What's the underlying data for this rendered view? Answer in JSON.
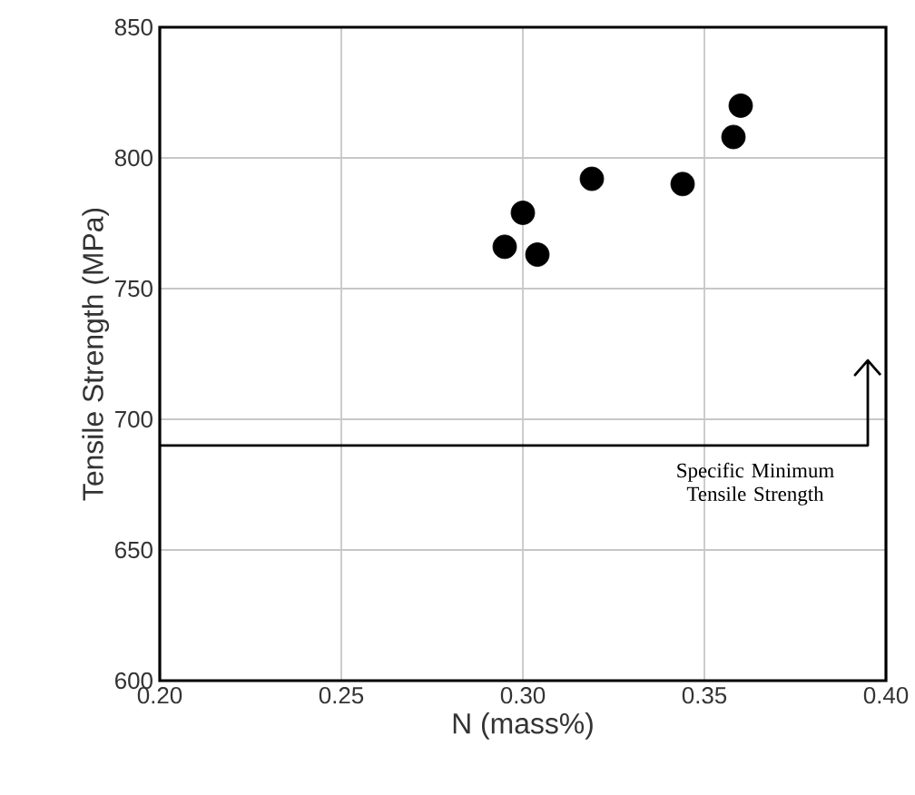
{
  "chart_data": {
    "type": "scatter",
    "xlabel": "N (mass%)",
    "ylabel": "Tensile Strength (MPa)",
    "x": [
      0.295,
      0.3,
      0.304,
      0.319,
      0.344,
      0.358,
      0.36
    ],
    "values": [
      766,
      779,
      763,
      792,
      790,
      808,
      820
    ],
    "color": "#000000",
    "grid": true,
    "xlim": [
      0.2,
      0.4
    ],
    "xticks": [
      {
        "value": 0.2,
        "label": "0.20"
      },
      0.25,
      {
        "value": 0.3,
        "label": "0.30"
      },
      0.35,
      {
        "value": 0.4,
        "label": "0.40"
      }
    ],
    "ylim": [
      600,
      850
    ],
    "yticks": [
      600,
      650,
      700,
      750,
      800,
      850
    ],
    "ref_lines": [
      {
        "axis": "y",
        "value": 690,
        "label": "Specific Minimum Tensile Strength",
        "color": "#000000"
      }
    ]
  }
}
